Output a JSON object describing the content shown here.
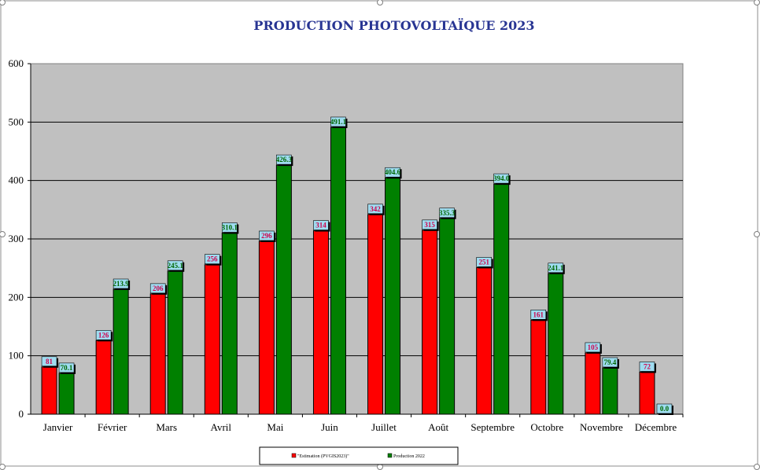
{
  "chart_data": {
    "type": "bar",
    "title": "PRODUCTION PHOTOVOLTAÏQUE 2023",
    "xlabel": "",
    "ylabel": "",
    "categories": [
      "Janvier",
      "Février",
      "Mars",
      "Avril",
      "Mai",
      "Juin",
      "Juillet",
      "Août",
      "Septembre",
      "Octobre",
      "Novembre",
      "Décembre"
    ],
    "series": [
      {
        "name": "\"Estimation (PVGIS2023)\"",
        "color": "#ff0000",
        "label_color": "#d0004b",
        "values": [
          81,
          126,
          206,
          256,
          296,
          314,
          342,
          315,
          251,
          161,
          105,
          72
        ],
        "labels": [
          "81",
          "126",
          "206",
          "256",
          "296",
          "314",
          "342",
          "315",
          "251",
          "161",
          "105",
          "72"
        ]
      },
      {
        "name": "Production 2022",
        "color": "#008000",
        "label_color": "#006600",
        "values": [
          70.1,
          213.9,
          245.1,
          310.1,
          426.3,
          491.1,
          404.6,
          335.3,
          394.0,
          241.1,
          79.4,
          0.0
        ],
        "labels": [
          "70.1",
          "213.9",
          "245.1",
          "310.1",
          "426.3",
          "491.1",
          "404.6",
          "335.3",
          "394.0",
          "241.1",
          "79.4",
          "0.0"
        ]
      }
    ],
    "ylim": [
      0,
      600
    ],
    "yticks": [
      0,
      100,
      200,
      300,
      400,
      500,
      600
    ],
    "grid": true,
    "plot_background": "#c0c0c0",
    "data_label_background": "#9fdcf0",
    "title_color": "#283593",
    "legend_position": "bottom-center"
  }
}
